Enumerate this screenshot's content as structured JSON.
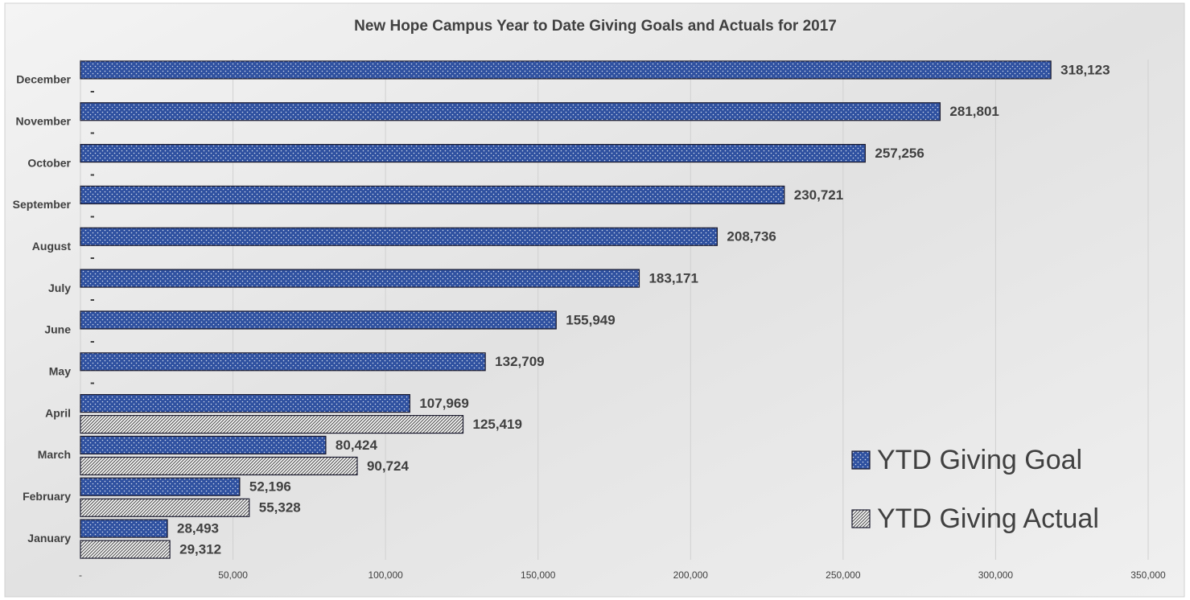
{
  "chart_data": {
    "type": "hbar",
    "title": "New Hope Campus Year to Date Giving Goals and Actuals for 2017",
    "categories": [
      "January",
      "February",
      "March",
      "April",
      "May",
      "June",
      "July",
      "August",
      "September",
      "October",
      "November",
      "December"
    ],
    "series": [
      {
        "name": "YTD Giving Goal",
        "color": "#2f51a0",
        "values": [
          28493,
          52196,
          80424,
          107969,
          132709,
          155949,
          183171,
          208736,
          230721,
          257256,
          281801,
          318123
        ],
        "value_labels": [
          "28,493",
          "52,196",
          "80,424",
          "107,969",
          "132,709",
          "155,949",
          "183,171",
          "208,736",
          "230,721",
          "257,256",
          "281,801",
          "318,123"
        ]
      },
      {
        "name": "YTD Giving Actual",
        "color": "#595959",
        "values": [
          29312,
          55328,
          90724,
          125419,
          0,
          0,
          0,
          0,
          0,
          0,
          0,
          0
        ],
        "value_labels": [
          "29,312",
          "55,328",
          "90,724",
          "125,419",
          "-",
          "-",
          "-",
          "-",
          "-",
          "-",
          "-",
          "-"
        ]
      }
    ],
    "xlim": [
      0,
      350000
    ],
    "xticks": [
      {
        "value": 0,
        "label": "-"
      },
      {
        "value": 50000,
        "label": "50,000"
      },
      {
        "value": 100000,
        "label": "100,000"
      },
      {
        "value": 150000,
        "label": "150,000"
      },
      {
        "value": 200000,
        "label": "200,000"
      },
      {
        "value": 250000,
        "label": "250,000"
      },
      {
        "value": 300000,
        "label": "300,000"
      },
      {
        "value": 350000,
        "label": "350,000"
      }
    ],
    "grid": true,
    "legend": "right"
  }
}
